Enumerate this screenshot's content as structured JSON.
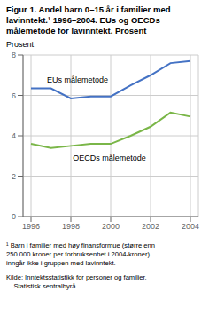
{
  "chart_data": {
    "type": "line",
    "title": "Figur 1. Andel barn 0–15 år i familier med\nlavinntekt.¹ 1996–2004. EUs og OECDs\nmålemetode for lavinntekt. Prosent",
    "ylabel": "Prosent",
    "x": [
      1996,
      1997,
      1998,
      1999,
      2000,
      2001,
      2002,
      2003,
      2004
    ],
    "series": [
      {
        "name": "EUs målemetode",
        "color": "#4472C4",
        "values": [
          6.35,
          6.35,
          5.85,
          5.95,
          5.95,
          6.5,
          7.0,
          7.6,
          7.7
        ]
      },
      {
        "name": "OECDs målemetode",
        "color": "#7AB648",
        "values": [
          3.6,
          3.4,
          3.5,
          3.6,
          3.6,
          4.0,
          4.45,
          5.15,
          4.95
        ]
      }
    ],
    "annotations": [
      {
        "text": "EUs målemetode",
        "x": 1996.8,
        "y": 6.6
      },
      {
        "text": "OECDs målemetode",
        "x": 1998.1,
        "y": 3.1
      }
    ],
    "xlim": [
      1995.6,
      2004.4
    ],
    "xticks": [
      1996,
      1998,
      2000,
      2002,
      2004
    ],
    "ylim": [
      0,
      8
    ],
    "yticks": [
      0,
      2,
      4,
      6,
      8
    ],
    "grid": true,
    "notes": [
      "¹ Barn i familier med høy finansformue (større enn",
      "250 000 kroner per forbruksenhet i 2004-kroner)",
      "inngår ikke i gruppen med lavinntekt."
    ],
    "source": [
      "Kilde: Inntektsstatistikk for personer og familier,",
      "    Statistisk sentralbyrå."
    ]
  }
}
